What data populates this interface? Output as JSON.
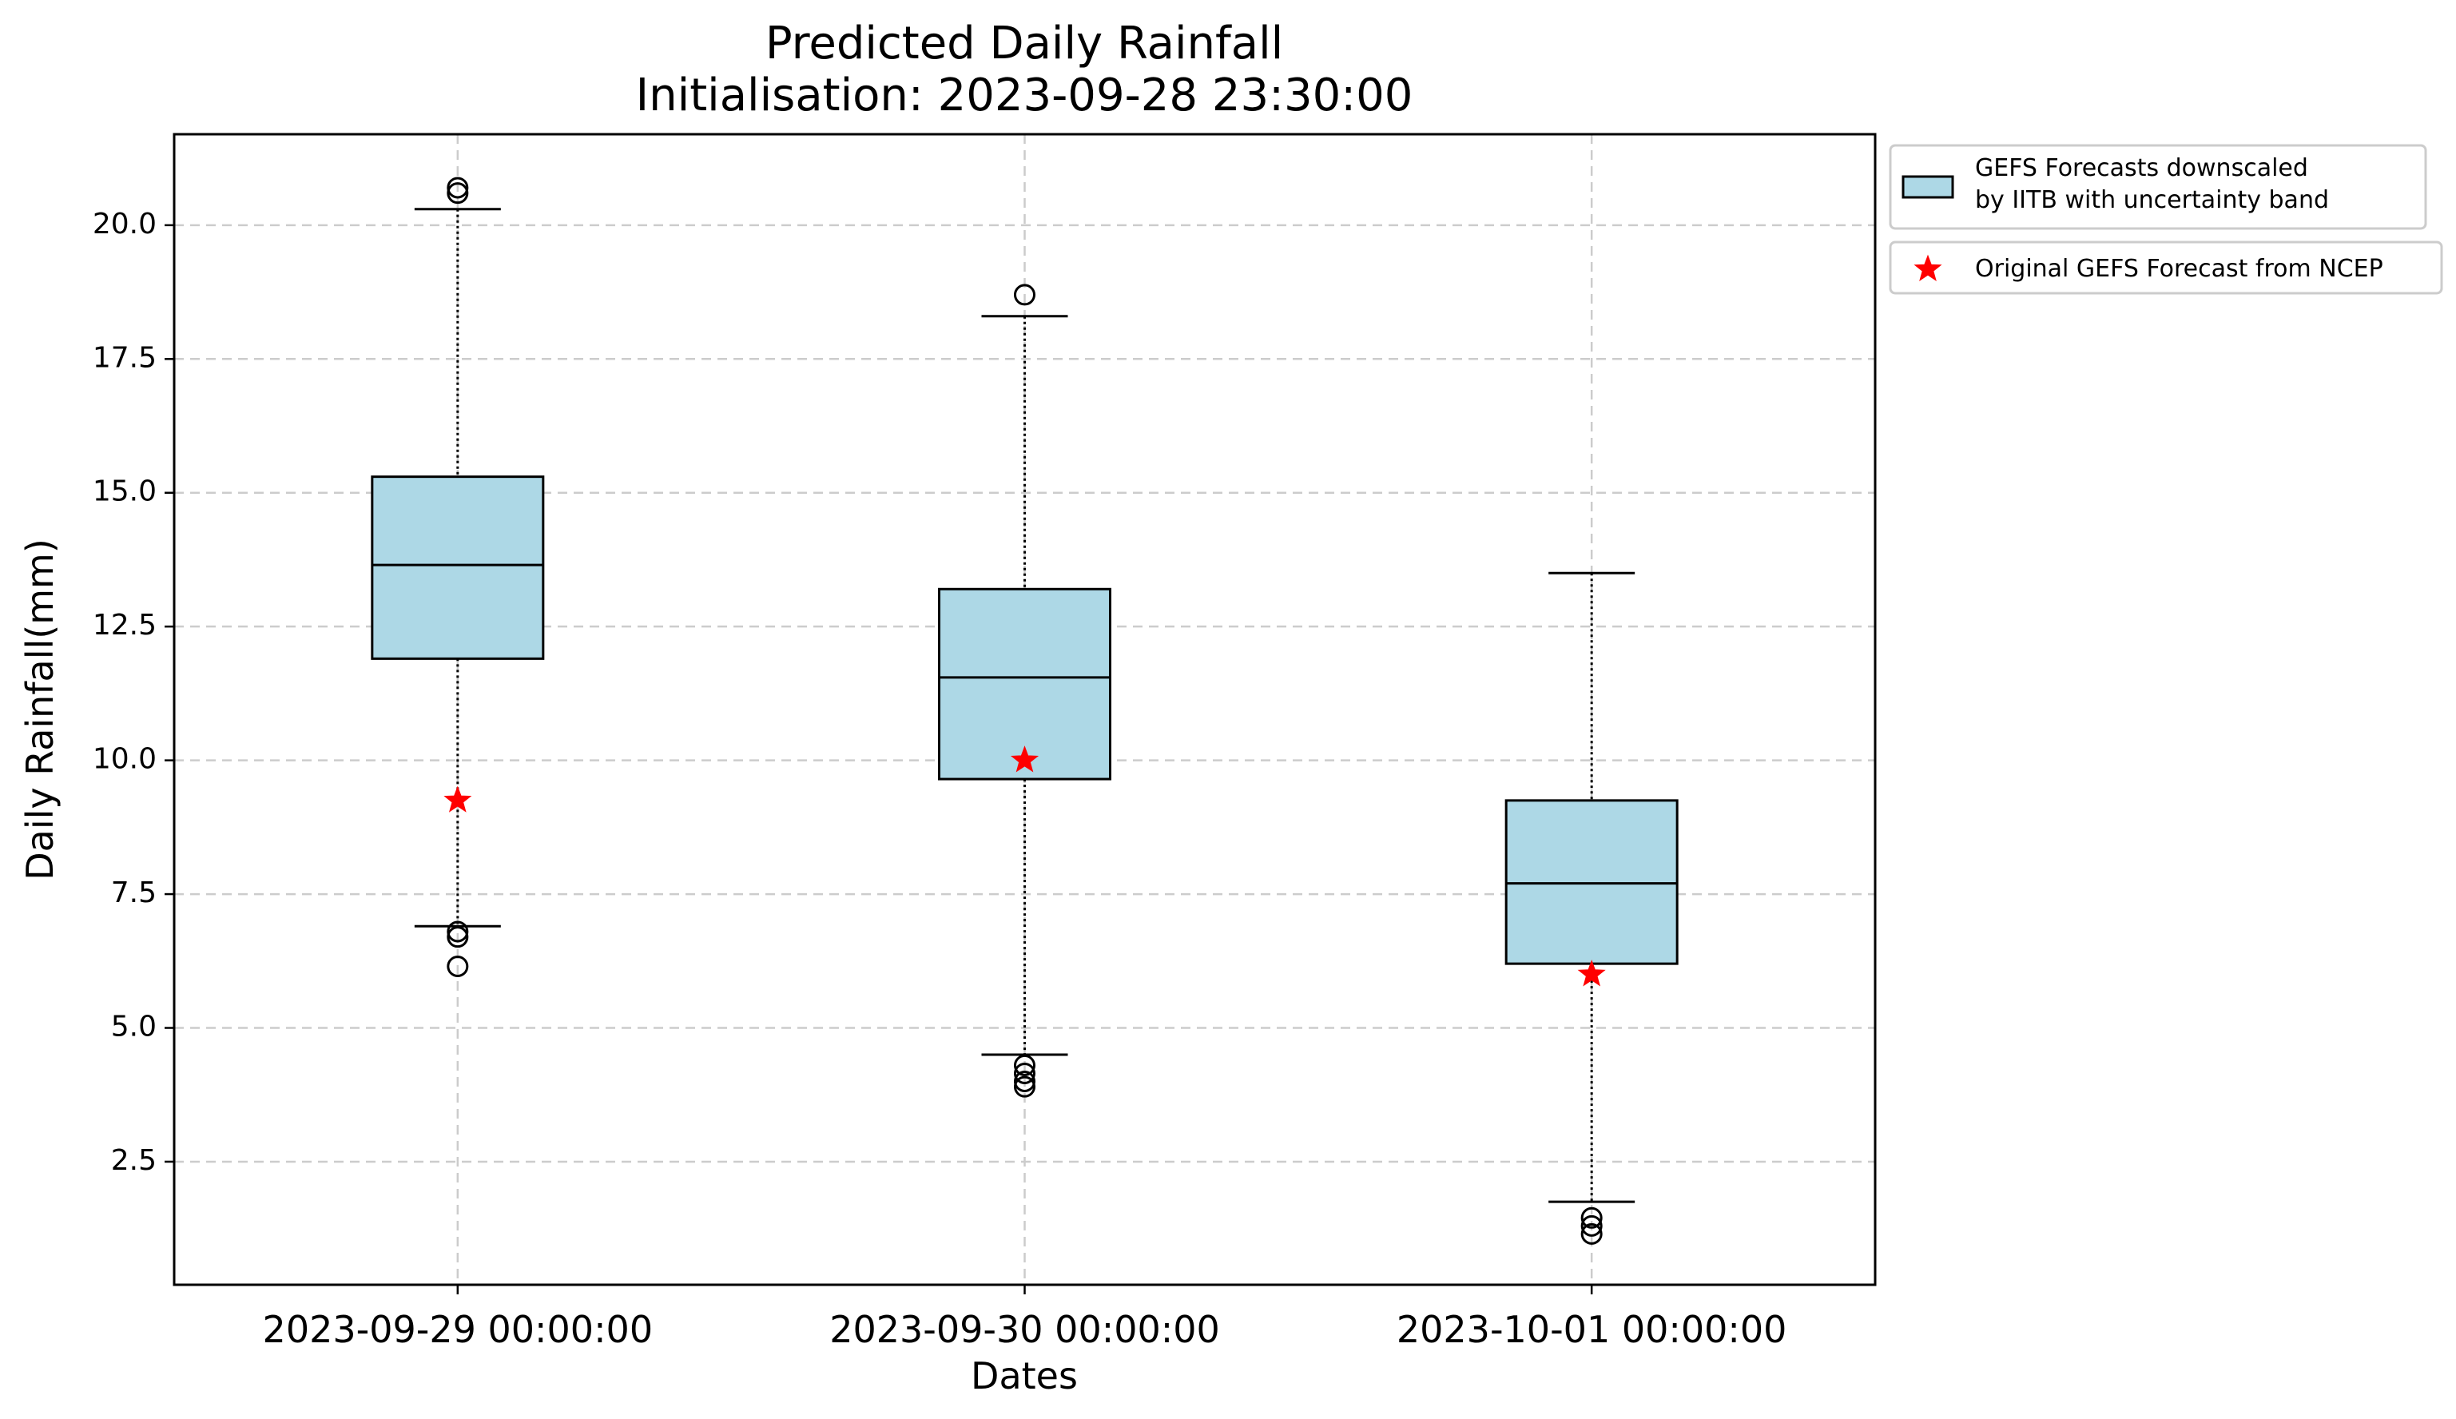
{
  "chart_data": {
    "type": "box",
    "title": "Predicted Daily Rainfall",
    "subtitle": "Initialisation: 2023-09-28 23:30:00",
    "xlabel": "Dates",
    "ylabel": "Daily Rainfall(mm)",
    "ylim": [
      0.2,
      21.7
    ],
    "yticks": [
      2.5,
      5.0,
      7.5,
      10.0,
      12.5,
      15.0,
      17.5,
      20.0
    ],
    "ytick_labels": [
      "2.5",
      "5.0",
      "7.5",
      "10.0",
      "12.5",
      "15.0",
      "17.5",
      "20.0"
    ],
    "grid": true,
    "legend_position": "outside-right-top",
    "categories": [
      "2023-09-29 00:00:00",
      "2023-09-30 00:00:00",
      "2023-10-01 00:00:00"
    ],
    "boxes": [
      {
        "whisker_low": 6.9,
        "q1": 11.9,
        "median": 13.65,
        "q3": 15.3,
        "whisker_high": 20.3,
        "outliers": [
          20.7,
          20.6,
          6.8,
          6.7,
          6.15
        ],
        "forecast": 9.25
      },
      {
        "whisker_low": 4.5,
        "q1": 9.65,
        "median": 11.55,
        "q3": 13.2,
        "whisker_high": 18.3,
        "outliers": [
          18.7,
          4.3,
          4.15,
          4.0,
          3.9
        ],
        "forecast": 10.0
      },
      {
        "whisker_low": 1.75,
        "q1": 6.2,
        "median": 7.7,
        "q3": 9.25,
        "whisker_high": 13.5,
        "outliers": [
          1.45,
          1.3,
          1.15
        ],
        "forecast": 6.0
      }
    ],
    "legend": [
      {
        "label_lines": [
          "GEFS Forecasts downscaled",
          "by IITB with uncertainty band"
        ],
        "marker": "box"
      },
      {
        "label_lines": [
          "Original GEFS Forecast from NCEP"
        ],
        "marker": "star"
      }
    ],
    "colors": {
      "box_fill": "#add8e6",
      "box_edge": "#000000",
      "forecast_marker": "#ff0000",
      "grid": "#cccccc"
    }
  }
}
